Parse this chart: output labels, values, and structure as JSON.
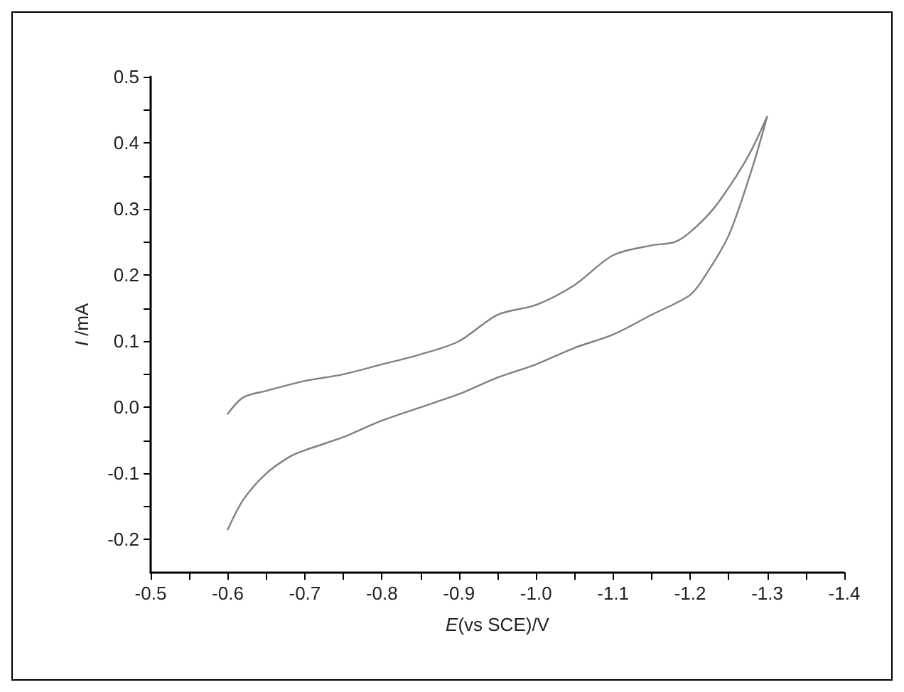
{
  "chart_data": {
    "type": "line",
    "xlabel": "E(vs SCE)/V",
    "ylabel": "I /mA",
    "xlim": [
      -0.5,
      -1.4
    ],
    "ylim": [
      -0.25,
      0.5
    ],
    "xticks": [
      -0.5,
      {
        "value": -0.55,
        "label": null
      },
      -0.6,
      {
        "value": -0.65,
        "label": null
      },
      -0.7,
      {
        "value": -0.75,
        "label": null
      },
      -0.8,
      {
        "value": -0.85,
        "label": null
      },
      -0.9,
      {
        "value": -0.95,
        "label": null
      },
      {
        "value": -1.0,
        "label": "-1.0"
      },
      {
        "value": -1.05,
        "label": null
      },
      -1.1,
      {
        "value": -1.15,
        "label": null
      },
      -1.2,
      {
        "value": -1.25,
        "label": null
      },
      -1.3,
      {
        "value": -1.35,
        "label": null
      },
      -1.4
    ],
    "yticks": [
      -0.2,
      {
        "value": -0.15,
        "label": null
      },
      -0.1,
      {
        "value": -0.05,
        "label": null
      },
      {
        "value": 0,
        "label": "0.0"
      },
      {
        "value": 0.05,
        "label": null
      },
      0.1,
      {
        "value": 0.15,
        "label": null
      },
      0.2,
      {
        "value": 0.25,
        "label": null
      },
      0.3,
      {
        "value": 0.35,
        "label": null
      },
      0.4,
      {
        "value": 0.45,
        "label": null
      },
      0.5
    ],
    "grid": false,
    "marker": "none",
    "line_style": "solid",
    "series": [
      {
        "color": "#808080",
        "x": [
          -0.6,
          -0.62,
          -0.65,
          -0.7,
          -0.75,
          -0.8,
          -0.85,
          -0.9,
          -0.95,
          -1.0,
          -1.05,
          -1.1,
          -1.15,
          -1.18,
          -1.2,
          -1.23,
          -1.26,
          -1.28,
          -1.3,
          -1.28,
          -1.25,
          -1.22,
          -1.2,
          -1.15,
          -1.1,
          -1.05,
          -1.0,
          -0.95,
          -0.9,
          -0.85,
          -0.8,
          -0.75,
          -0.7,
          -0.68,
          -0.65,
          -0.62,
          -0.6
        ],
        "values": [
          -0.01,
          0.015,
          0.025,
          0.04,
          0.05,
          0.065,
          0.08,
          0.1,
          0.14,
          0.155,
          0.185,
          0.23,
          0.245,
          0.25,
          0.265,
          0.3,
          0.35,
          0.39,
          0.44,
          0.36,
          0.26,
          0.2,
          0.17,
          0.14,
          0.11,
          0.09,
          0.065,
          0.045,
          0.02,
          0.0,
          -0.02,
          -0.045,
          -0.065,
          -0.075,
          -0.1,
          -0.14,
          -0.185
        ]
      }
    ]
  }
}
